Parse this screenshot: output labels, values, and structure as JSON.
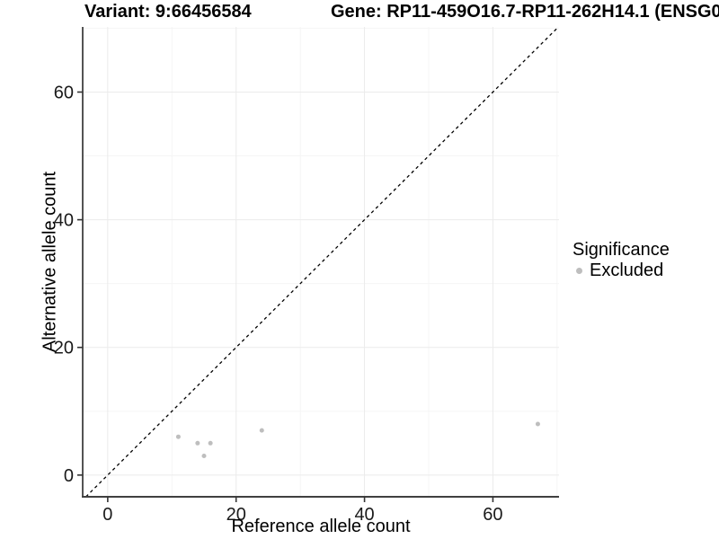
{
  "colors": {
    "background": "#ffffff",
    "axis_line": "#404040",
    "tick_mark": "#333333",
    "tick_label": "#1a1a1a",
    "grid_major": "#ebebeb",
    "grid_minor": "#f5f5f5",
    "point": "#bebebe",
    "identity_line": "#000000",
    "title_text": "#000000"
  },
  "chart_data": {
    "type": "scatter",
    "title_left": "Variant: 9:66456584",
    "title_right": "Gene: RP11-459O16.7-RP11-262H14.1 (ENSG0",
    "xlabel": "Reference allele count",
    "ylabel": "Alternative allele count",
    "xlim": [
      -3.9,
      70.3
    ],
    "ylim": [
      -3.4,
      70.2
    ],
    "xticks": [
      0,
      20,
      40,
      60
    ],
    "yticks": [
      0,
      20,
      40,
      60
    ],
    "xminor": [
      10,
      30,
      50,
      70
    ],
    "yminor": [
      10,
      30,
      50,
      70
    ],
    "grid": "major and minor gridlines on white background",
    "identity_line": {
      "equation": "y = x",
      "style": "dashed",
      "color": "#000000"
    },
    "series": [
      {
        "name": "Excluded",
        "color": "#bebebe",
        "points": [
          [
            11,
            6
          ],
          [
            14,
            5
          ],
          [
            15,
            3
          ],
          [
            16,
            5
          ],
          [
            24,
            7
          ],
          [
            67,
            8
          ]
        ]
      }
    ],
    "legend": {
      "title": "Significance",
      "position": "right",
      "entries": [
        {
          "label": "Excluded",
          "color": "#bebebe"
        }
      ]
    }
  }
}
